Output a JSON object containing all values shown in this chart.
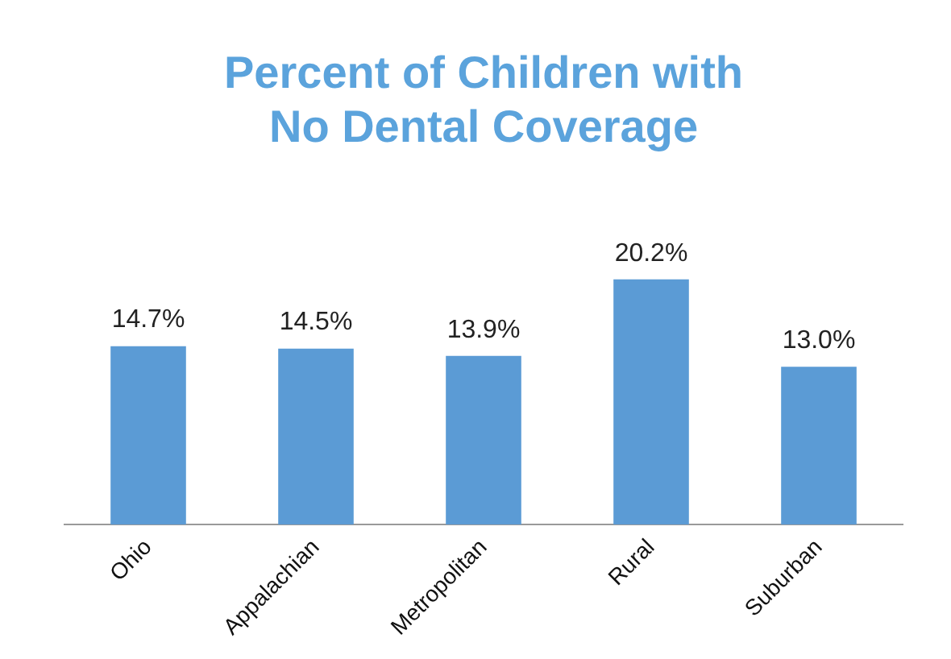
{
  "chart_data": {
    "type": "bar",
    "title": "Percent of Children with\nNo Dental Coverage",
    "categories": [
      "Ohio",
      "Appalachian",
      "Metropolitan",
      "Rural",
      "Suburban"
    ],
    "values": [
      14.7,
      14.5,
      13.9,
      20.2,
      13.0
    ],
    "value_labels": [
      "14.7%",
      "14.5%",
      "13.9%",
      "20.2%",
      "13.0%"
    ],
    "color": "#5b9bd5",
    "grid": false,
    "legend": false
  }
}
